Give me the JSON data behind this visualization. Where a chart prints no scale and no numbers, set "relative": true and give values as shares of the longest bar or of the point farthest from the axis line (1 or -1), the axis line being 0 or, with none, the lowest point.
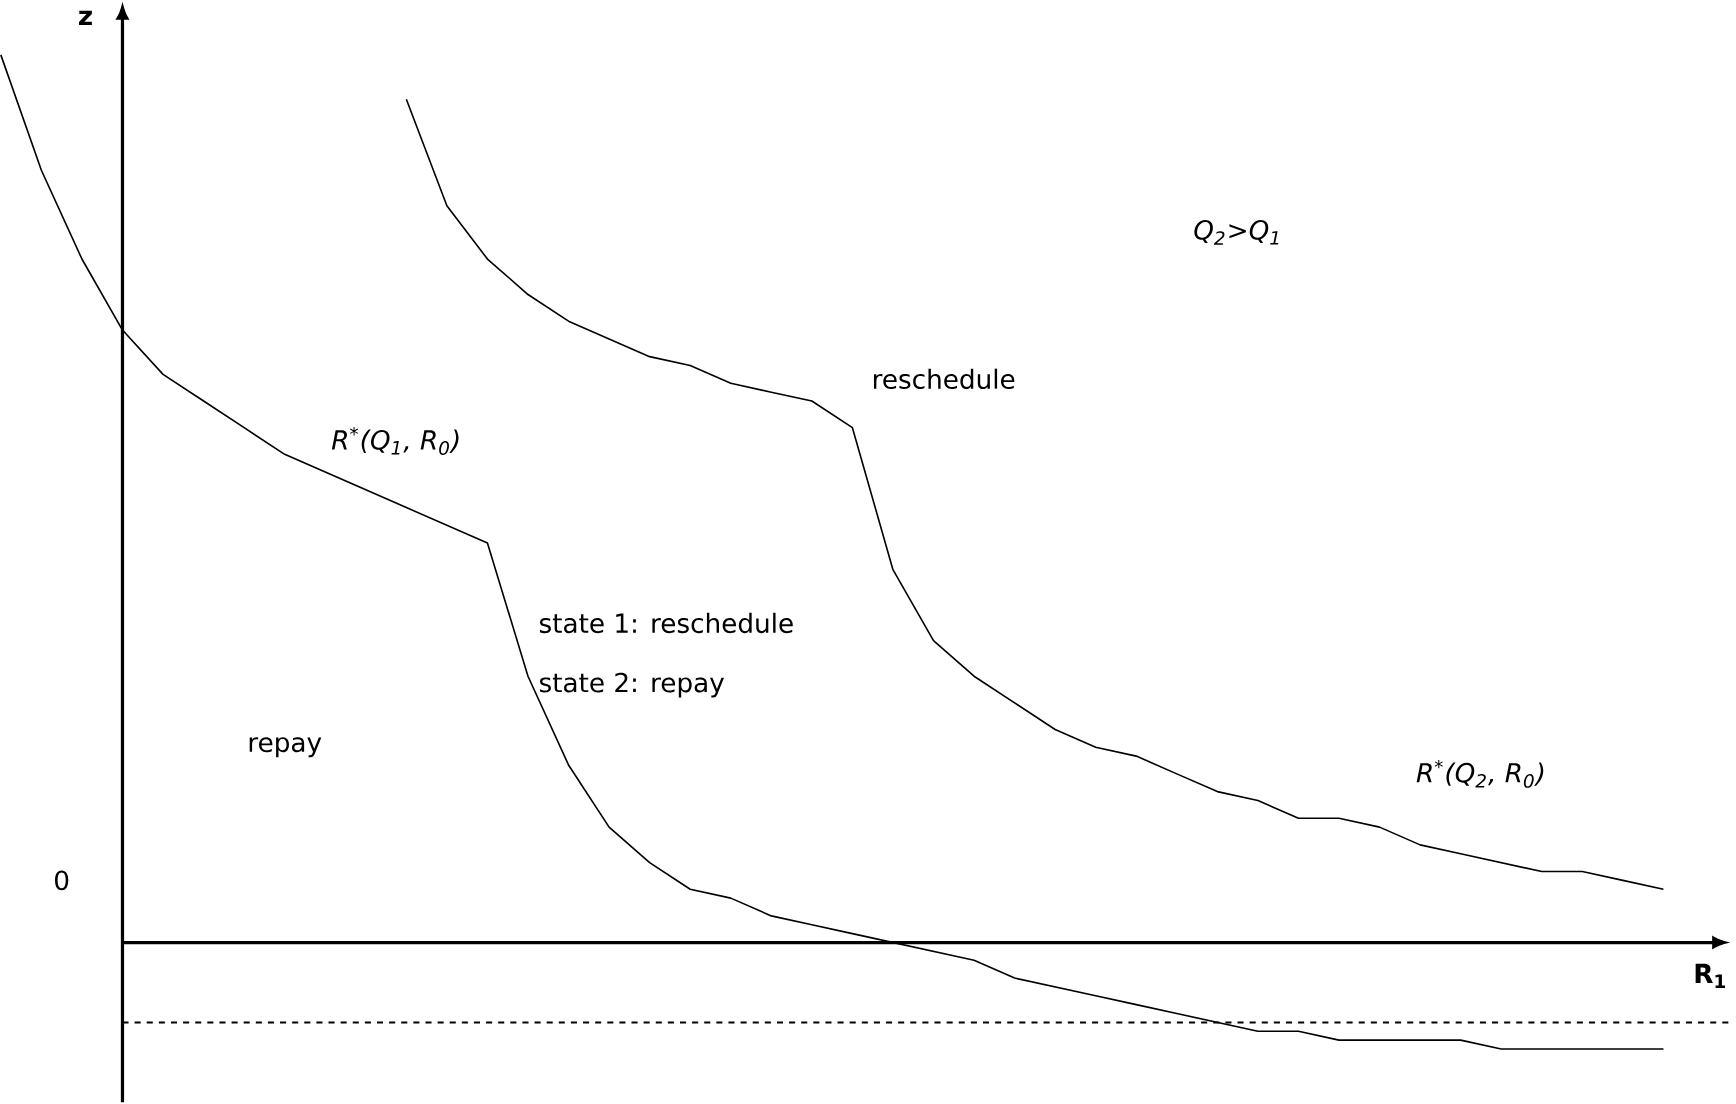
{
  "chart_data": {
    "type": "line",
    "relative": true,
    "xlabel": "R$_{1}$",
    "ylabel": "z",
    "legend": false,
    "marker": "none",
    "line_style": "solid",
    "categories": [
      null,
      null,
      null,
      null,
      null,
      null,
      null,
      null,
      null,
      null,
      null,
      null,
      null,
      null,
      null,
      null,
      null,
      null,
      null,
      null,
      null,
      null,
      null,
      null,
      null,
      null,
      null,
      null,
      null,
      null,
      null,
      null,
      null,
      null,
      null,
      null,
      null,
      null,
      null,
      null,
      null,
      null
    ],
    "series": [
      {
        "name": "R$^{*}$(Q$_{1}$, R$_{0}$)",
        "color": "#000000",
        "values": [
          1.0,
          0.87,
          0.77,
          0.69,
          0.64,
          0.61,
          0.58,
          0.55,
          0.53,
          0.51,
          0.49,
          0.47,
          0.45,
          0.3,
          0.2,
          0.13,
          0.09,
          0.06,
          0.05,
          0.03,
          0.02,
          0.01,
          0,
          -0.01,
          -0.02,
          -0.04,
          -0.05,
          -0.06,
          -0.07,
          -0.08,
          -0.09,
          -0.1,
          -0.1,
          -0.11,
          -0.11,
          -0.11,
          -0.11,
          -0.12,
          -0.12,
          -0.12,
          -0.12,
          -0.12
        ]
      },
      {
        "name": "R$^{*}$(Q$_{2}$, R$_{0}$)",
        "color": "#000000",
        "values": [
          null,
          null,
          null,
          null,
          null,
          null,
          null,
          null,
          null,
          null,
          0.95,
          0.83,
          0.77,
          0.73,
          0.7,
          0.68,
          0.66,
          0.65,
          0.63,
          0.62,
          0.61,
          0.58,
          0.42,
          0.34,
          0.3,
          0.27,
          0.24,
          0.22,
          0.21,
          0.19,
          0.17,
          0.16,
          0.14,
          0.14,
          0.13,
          0.11,
          0.1,
          0.09,
          0.08,
          0.08,
          0.07,
          0.06
        ]
      }
    ],
    "ref_lines": [
      {
        "axis": "y",
        "value": -0.09,
        "line_style": "dashed",
        "color": "#000000"
      }
    ],
    "annotations": [
      "Q$_{2}$>Q$_{1}$",
      "reschedule",
      "state 1: reschedule",
      "state 2: repay",
      "repay",
      "0"
    ]
  }
}
